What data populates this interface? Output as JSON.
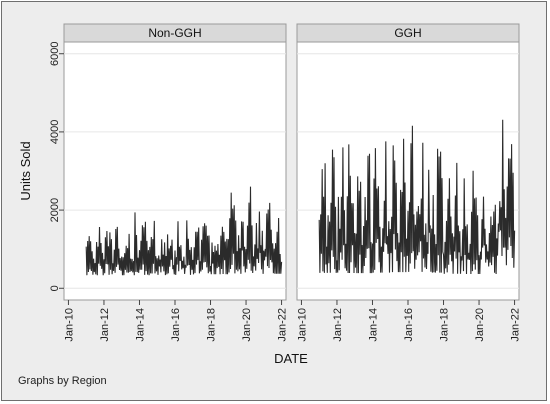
{
  "chart_data": {
    "type": "line",
    "ylabel": "Units Sold",
    "xlabel": "DATE",
    "note": "Graphs by Region",
    "ylim": [
      0,
      6000
    ],
    "yticks": [
      0,
      2000,
      4000,
      6000
    ],
    "xlim": [
      "2009-10",
      "2022-04"
    ],
    "xticks": [
      "Jan-10",
      "Jan-12",
      "Jan-14",
      "Jan-16",
      "Jan-18",
      "Jan-20",
      "Jan-22"
    ],
    "grid": true,
    "panels": [
      {
        "name": "Non-GGH",
        "series": {
          "start": "2011-01",
          "end": "2021-12",
          "points_per_year": 24,
          "yearly_peaks": [
            1950,
            1900,
            1950,
            1950,
            2000,
            2150,
            2350,
            2450,
            2650,
            2600,
            2700
          ],
          "trough": 250
        }
      },
      {
        "name": "GGH",
        "series": {
          "start": "2011-01",
          "end": "2021-12",
          "points_per_year": 24,
          "yearly_peaks": [
            4050,
            4000,
            3950,
            4200,
            4450,
            4600,
            4200,
            3600,
            3500,
            3500,
            5000
          ],
          "trough": 200
        }
      }
    ]
  }
}
